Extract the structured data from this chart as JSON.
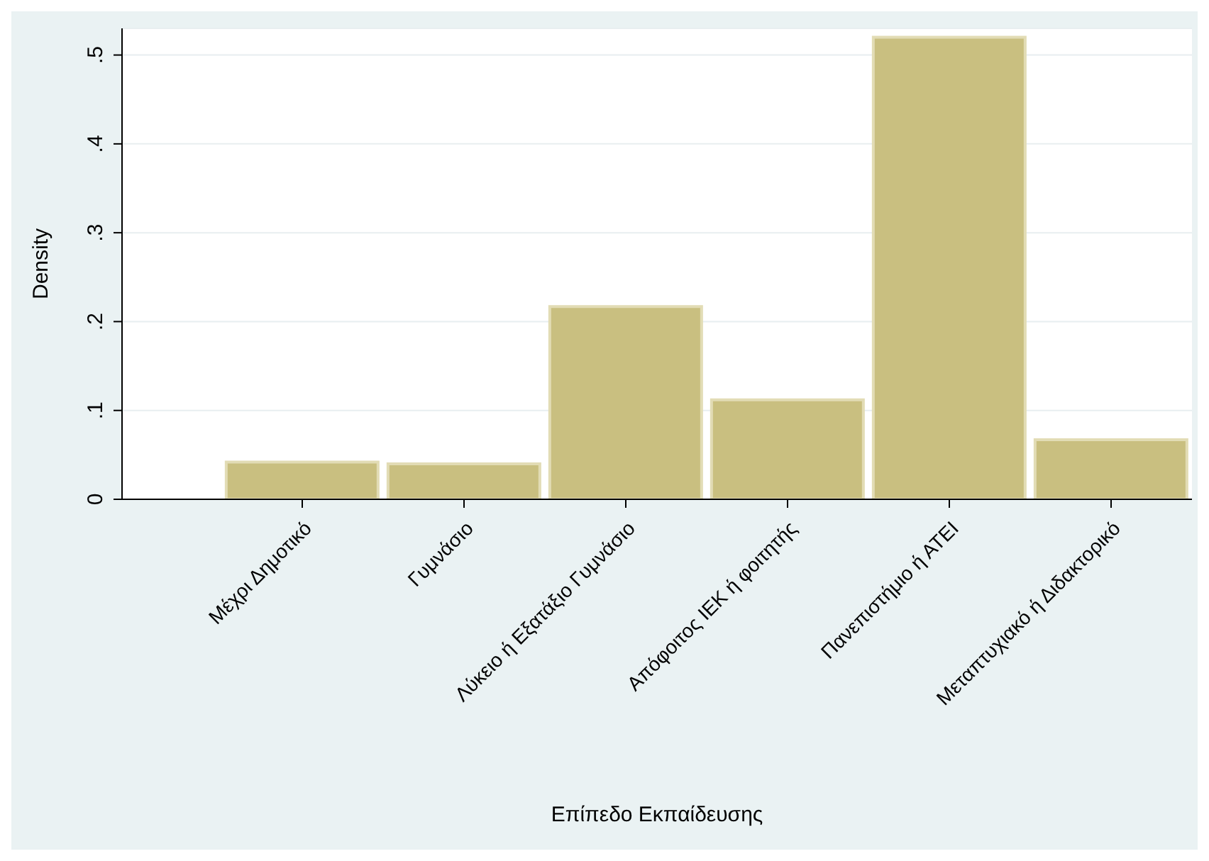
{
  "chart_data": {
    "type": "bar",
    "xlabel": "Επίπεδο Εκπαίδευσης",
    "ylabel": "Density",
    "categories": [
      "Μέχρι Δημοτικό",
      "Γυμνάσιο",
      "Λύκειο ή Εξατάξιο Γυμνάσιο",
      "Απόφοιτος ΙΕΚ ή φοιτητής",
      "Πανεπιστήμιο ή ΑΤΕΙ",
      "Μεταπτυχιακό ή Διδακτορικό"
    ],
    "values": [
      0.042,
      0.04,
      0.217,
      0.112,
      0.52,
      0.067
    ],
    "color": "#c9bf80",
    "ylim": [
      0,
      0.53
    ],
    "yticks": [
      0,
      {
        "value": 0.1,
        "label": ".1"
      },
      {
        "value": 0.2,
        "label": ".2"
      },
      {
        "value": 0.3,
        "label": ".3"
      },
      {
        "value": 0.4,
        "label": ".4"
      },
      {
        "value": 0.5,
        "label": ".5"
      }
    ],
    "grid": "y"
  }
}
